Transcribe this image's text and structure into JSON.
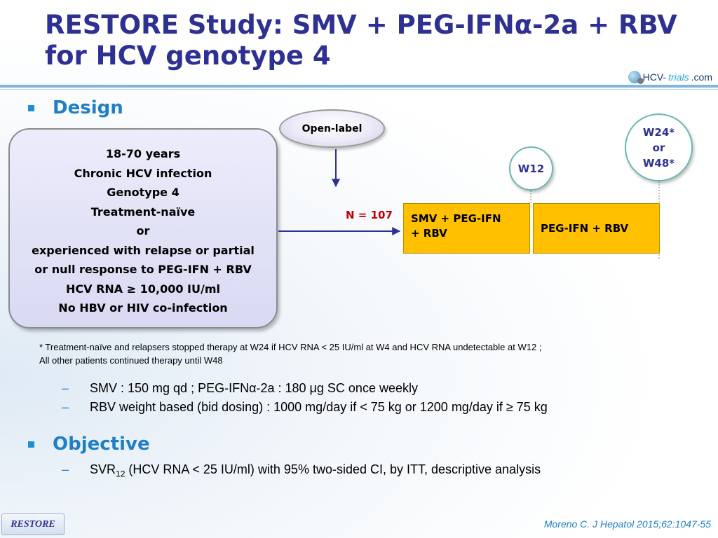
{
  "title": {
    "line1": "RESTORE Study: SMV + PEG-IFNα-2a + RBV",
    "line2": "for HCV genotype 4"
  },
  "logo": {
    "prefix": "HCV-",
    "trials": "trials",
    "suffix": ".com"
  },
  "design": {
    "heading": "Design",
    "criteria": [
      "18-70 years",
      "Chronic HCV infection",
      "Genotype 4",
      "Treatment-naïve",
      "or",
      "experienced with relapse or partial",
      "or null response to PEG-IFN + RBV",
      "HCV RNA ≥ 10,000 IU/ml",
      "No HBV or HIV co-infection"
    ],
    "open_label": "Open-label",
    "timepoint_w12": "W12",
    "timepoint_w24": "W24*",
    "timepoint_or": "or",
    "timepoint_w48": "W48*",
    "n_label": "N = 107",
    "arm1_line1": "SMV +  PEG-IFN",
    "arm1_line2": "+ RBV",
    "arm2": "PEG-IFN + RBV",
    "footnote_line1": "* Treatment-naïve and relapsers stopped therapy at W24 if HCV RNA < 25 IU/ml at W4 and HCV RNA undetectable at W12 ;",
    "footnote_line2": "All other patients continued therapy until W48",
    "dosing": [
      "SMV : 150 mg qd ; PEG-IFNα-2a : 180 μg SC once weekly",
      "RBV weight based (bid dosing) : 1000 mg/day if < 75 kg or 1200 mg/day if ≥ 75 kg"
    ]
  },
  "objective": {
    "heading": "Objective",
    "item_prefix": "SVR",
    "item_subscript": "12",
    "item_rest": " (HCV RNA < 25 IU/ml) with 95% two-sided CI, by ITT, descriptive analysis"
  },
  "footer": {
    "nav_button": "RESTORE",
    "citation": "Moreno C. J Hepatol 2015;62:1047-55"
  },
  "colors": {
    "title": "#2e3192",
    "accent": "#1f7fc4",
    "arm_fill": "#ffc000",
    "n_label": "#c00000",
    "criteria_fill": "#dcdcf5"
  },
  "icons": {
    "bullet": "square-bullet-icon",
    "dash": "dash-bullet-icon"
  }
}
